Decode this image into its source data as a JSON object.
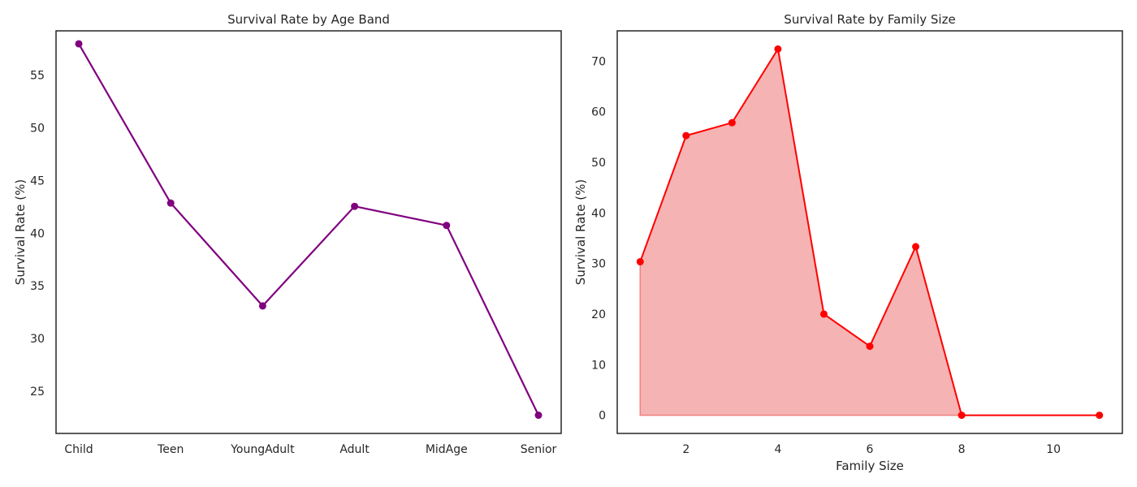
{
  "chart_data": [
    {
      "type": "line",
      "title": "Survival Rate by Age Band",
      "xlabel": "",
      "ylabel": "Survival Rate (%)",
      "categories": [
        "Child",
        "Teen",
        "YoungAdult",
        "Adult",
        "MidAge",
        "Senior"
      ],
      "values": [
        57.97,
        42.86,
        33.1,
        42.55,
        40.74,
        22.73
      ],
      "ylim": [
        21.0,
        59.2
      ],
      "yticks": [
        25,
        30,
        35,
        40,
        45,
        50,
        55
      ],
      "grid": false,
      "color": "#800080"
    },
    {
      "type": "area",
      "title": "Survival Rate by Family Size",
      "xlabel": "Family Size",
      "ylabel": "Survival Rate (%)",
      "x": [
        1,
        2,
        3,
        4,
        5,
        6,
        7,
        8,
        11
      ],
      "values": [
        30.35,
        55.28,
        57.84,
        72.41,
        20.0,
        13.64,
        33.33,
        0.0,
        0.0
      ],
      "xlim": [
        0.5,
        11.5
      ],
      "ylim": [
        -3.6,
        76.0
      ],
      "xticks": [
        2,
        4,
        6,
        8,
        10
      ],
      "yticks": [
        0,
        10,
        20,
        30,
        40,
        50,
        60,
        70
      ],
      "grid": false,
      "line_color": "#ff0000",
      "fill_color": "#f08080"
    }
  ]
}
